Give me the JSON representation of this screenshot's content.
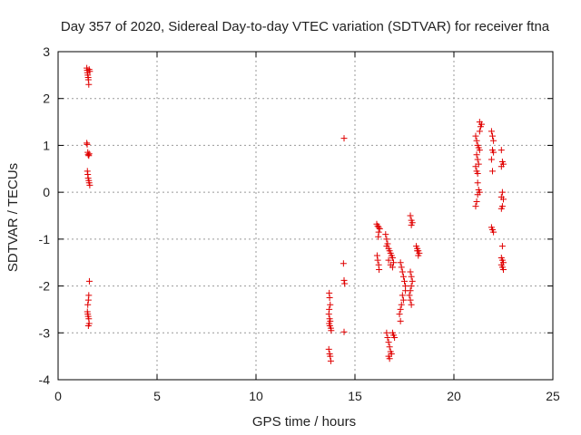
{
  "chart_data": {
    "type": "scatter",
    "title": "Day 357 of 2020, Sidereal Day-to-day VTEC variation (SDTVAR) for receiver ftna",
    "xlabel": "GPS time / hours",
    "ylabel": "SDTVAR / TECUs",
    "xlim": [
      0,
      25
    ],
    "ylim": [
      -4,
      3
    ],
    "xticks": [
      "0",
      "5",
      "10",
      "15",
      "20",
      "25"
    ],
    "yticks": [
      "-4",
      "-3",
      "-2",
      "-1",
      "0",
      "1",
      "2",
      "3"
    ],
    "grid": true,
    "marker": "+",
    "color": "#e00000",
    "series": [
      {
        "name": "SDTVAR",
        "points": [
          [
            1.45,
            2.65
          ],
          [
            1.47,
            2.6
          ],
          [
            1.48,
            2.55
          ],
          [
            1.5,
            2.5
          ],
          [
            1.52,
            2.45
          ],
          [
            1.53,
            2.4
          ],
          [
            1.55,
            2.3
          ],
          [
            1.57,
            2.62
          ],
          [
            1.6,
            2.58
          ],
          [
            1.45,
            1.05
          ],
          [
            1.47,
            1.02
          ],
          [
            1.5,
            0.85
          ],
          [
            1.52,
            0.8
          ],
          [
            1.55,
            0.78
          ],
          [
            1.57,
            0.82
          ],
          [
            1.48,
            0.45
          ],
          [
            1.5,
            0.38
          ],
          [
            1.52,
            0.3
          ],
          [
            1.55,
            0.25
          ],
          [
            1.57,
            0.2
          ],
          [
            1.6,
            0.15
          ],
          [
            1.58,
            -1.9
          ],
          [
            1.55,
            -2.2
          ],
          [
            1.53,
            -2.3
          ],
          [
            1.5,
            -2.4
          ],
          [
            1.48,
            -2.55
          ],
          [
            1.5,
            -2.6
          ],
          [
            1.52,
            -2.65
          ],
          [
            1.55,
            -2.7
          ],
          [
            1.57,
            -2.8
          ],
          [
            1.53,
            -2.85
          ],
          [
            13.7,
            -2.15
          ],
          [
            13.72,
            -2.25
          ],
          [
            13.75,
            -2.4
          ],
          [
            13.7,
            -2.5
          ],
          [
            13.68,
            -2.6
          ],
          [
            13.72,
            -2.7
          ],
          [
            13.75,
            -2.75
          ],
          [
            13.7,
            -2.8
          ],
          [
            13.73,
            -2.85
          ],
          [
            13.78,
            -2.9
          ],
          [
            13.8,
            -2.95
          ],
          [
            13.68,
            -3.35
          ],
          [
            13.72,
            -3.45
          ],
          [
            13.75,
            -3.5
          ],
          [
            13.78,
            -3.6
          ],
          [
            14.45,
            1.15
          ],
          [
            14.42,
            -1.52
          ],
          [
            14.45,
            -1.88
          ],
          [
            14.48,
            -1.95
          ],
          [
            14.45,
            -2.98
          ],
          [
            16.1,
            -0.68
          ],
          [
            16.15,
            -0.72
          ],
          [
            16.2,
            -0.75
          ],
          [
            16.25,
            -0.78
          ],
          [
            16.2,
            -0.85
          ],
          [
            16.18,
            -0.95
          ],
          [
            16.12,
            -1.35
          ],
          [
            16.15,
            -1.45
          ],
          [
            16.2,
            -1.55
          ],
          [
            16.22,
            -1.65
          ],
          [
            16.55,
            -0.9
          ],
          [
            16.6,
            -1.0
          ],
          [
            16.65,
            -1.1
          ],
          [
            16.7,
            -1.2
          ],
          [
            16.75,
            -1.25
          ],
          [
            16.8,
            -1.3
          ],
          [
            16.85,
            -1.35
          ],
          [
            16.9,
            -1.4
          ],
          [
            16.95,
            -1.5
          ],
          [
            16.6,
            -1.15
          ],
          [
            16.7,
            -1.45
          ],
          [
            16.8,
            -1.55
          ],
          [
            16.9,
            -1.6
          ],
          [
            16.6,
            -3.0
          ],
          [
            16.65,
            -3.1
          ],
          [
            16.7,
            -3.2
          ],
          [
            16.75,
            -3.3
          ],
          [
            16.8,
            -3.4
          ],
          [
            16.85,
            -3.45
          ],
          [
            16.7,
            -3.5
          ],
          [
            16.75,
            -3.55
          ],
          [
            16.9,
            -3.0
          ],
          [
            16.95,
            -3.05
          ],
          [
            17.0,
            -3.1
          ],
          [
            17.3,
            -1.5
          ],
          [
            17.35,
            -1.6
          ],
          [
            17.4,
            -1.7
          ],
          [
            17.45,
            -1.8
          ],
          [
            17.5,
            -1.9
          ],
          [
            17.55,
            -2.0
          ],
          [
            17.4,
            -2.2
          ],
          [
            17.35,
            -2.4
          ],
          [
            17.3,
            -2.5
          ],
          [
            17.25,
            -2.6
          ],
          [
            17.3,
            -2.75
          ],
          [
            17.45,
            -2.3
          ],
          [
            17.55,
            -2.1
          ],
          [
            17.8,
            -0.5
          ],
          [
            17.85,
            -0.6
          ],
          [
            17.9,
            -0.65
          ],
          [
            17.85,
            -0.7
          ],
          [
            17.8,
            -1.7
          ],
          [
            17.85,
            -1.8
          ],
          [
            17.9,
            -1.9
          ],
          [
            17.85,
            -2.0
          ],
          [
            17.8,
            -2.1
          ],
          [
            17.75,
            -2.2
          ],
          [
            17.8,
            -2.3
          ],
          [
            17.85,
            -2.4
          ],
          [
            18.1,
            -1.15
          ],
          [
            18.15,
            -1.2
          ],
          [
            18.2,
            -1.25
          ],
          [
            18.25,
            -1.3
          ],
          [
            18.2,
            -1.35
          ],
          [
            18.15,
            -1.25
          ],
          [
            21.1,
            1.2
          ],
          [
            21.15,
            1.1
          ],
          [
            21.2,
            1.0
          ],
          [
            21.25,
            0.95
          ],
          [
            21.3,
            0.9
          ],
          [
            21.15,
            0.8
          ],
          [
            21.2,
            0.7
          ],
          [
            21.25,
            0.6
          ],
          [
            21.1,
            0.55
          ],
          [
            21.15,
            0.45
          ],
          [
            21.2,
            0.4
          ],
          [
            21.3,
            1.3
          ],
          [
            21.35,
            1.4
          ],
          [
            21.4,
            1.45
          ],
          [
            21.3,
            1.5
          ],
          [
            21.2,
            0.2
          ],
          [
            21.25,
            0.05
          ],
          [
            21.3,
            0.0
          ],
          [
            21.2,
            -0.05
          ],
          [
            21.15,
            -0.2
          ],
          [
            21.1,
            -0.3
          ],
          [
            21.9,
            1.3
          ],
          [
            21.95,
            1.2
          ],
          [
            22.0,
            1.1
          ],
          [
            21.95,
            0.9
          ],
          [
            22.0,
            0.85
          ],
          [
            21.9,
            0.7
          ],
          [
            21.95,
            0.45
          ],
          [
            21.9,
            -0.75
          ],
          [
            21.95,
            -0.8
          ],
          [
            22.0,
            -0.85
          ],
          [
            22.4,
            0.9
          ],
          [
            22.45,
            0.65
          ],
          [
            22.5,
            0.6
          ],
          [
            22.4,
            0.55
          ],
          [
            22.45,
            0.0
          ],
          [
            22.4,
            -0.1
          ],
          [
            22.5,
            -0.15
          ],
          [
            22.45,
            -0.3
          ],
          [
            22.4,
            -0.35
          ],
          [
            22.45,
            -1.15
          ],
          [
            22.4,
            -1.4
          ],
          [
            22.45,
            -1.45
          ],
          [
            22.5,
            -1.5
          ],
          [
            22.4,
            -1.55
          ],
          [
            22.45,
            -1.6
          ],
          [
            22.5,
            -1.65
          ]
        ]
      }
    ]
  }
}
